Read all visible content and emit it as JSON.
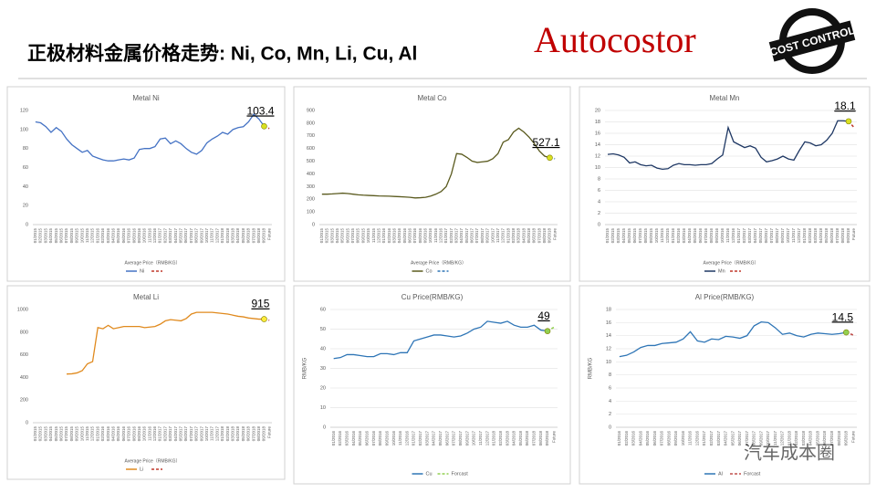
{
  "header": {
    "title": "正极材料金属价格走势: Ni, Co, Mn, Li, Cu, Al",
    "logo": "Autocostor",
    "badge": "COST CONTROL",
    "watermark": "汽车成本圈"
  },
  "chart_data": [
    {
      "type": "line",
      "title": "Metal Ni",
      "x_label": "Average Price（RMB/KG）",
      "ylim": [
        0,
        120
      ],
      "yticks": [
        0,
        20,
        40,
        60,
        80,
        100,
        120
      ],
      "grid": false,
      "marker_color": "#d9e021",
      "categories": [
        "01/2015",
        "02/2015",
        "03/2015",
        "04/2015",
        "05/2015",
        "06/2015",
        "07/2015",
        "08/2015",
        "09/2015",
        "10/2015",
        "11/2015",
        "12/2015",
        "01/2016",
        "02/2016",
        "03/2016",
        "04/2016",
        "05/2016",
        "06/2016",
        "07/2016",
        "08/2016",
        "09/2016",
        "10/2016",
        "11/2016",
        "12/2016",
        "01/2017",
        "02/2017",
        "03/2017",
        "04/2017",
        "05/2017",
        "06/2017",
        "07/2017",
        "08/2017",
        "09/2017",
        "10/2017",
        "11/2017",
        "12/2017",
        "01/2018",
        "02/2018",
        "03/2018",
        "04/2018",
        "05/2018",
        "06/2018",
        "07/2018",
        "08/2018",
        "09/2018",
        "Future"
      ],
      "series": [
        {
          "name": "Ni",
          "color": "#4472c4",
          "values": [
            108,
            107,
            103,
            97,
            102,
            98,
            90,
            84,
            80,
            76,
            78,
            72,
            70,
            68,
            67,
            67,
            68,
            69,
            68,
            70,
            79,
            80,
            80,
            82,
            90,
            91,
            85,
            88,
            85,
            80,
            76,
            74,
            78,
            86,
            90,
            93,
            97,
            95,
            100,
            102,
            103,
            108,
            116,
            111,
            103.4,
            null
          ]
        },
        {
          "color": "#c0392b",
          "dashed": true,
          "values": [
            null,
            null,
            null,
            null,
            null,
            null,
            null,
            null,
            null,
            null,
            null,
            null,
            null,
            null,
            null,
            null,
            null,
            null,
            null,
            null,
            null,
            null,
            null,
            null,
            null,
            null,
            null,
            null,
            null,
            null,
            null,
            null,
            null,
            null,
            null,
            null,
            null,
            null,
            null,
            null,
            null,
            null,
            null,
            null,
            103.4,
            101
          ]
        }
      ]
    },
    {
      "type": "line",
      "title": "Metal Co",
      "x_label": "Average Price（RMB/KG）",
      "ylim": [
        0,
        900
      ],
      "yticks": [
        0,
        100,
        200,
        300,
        400,
        500,
        600,
        700,
        800,
        900
      ],
      "grid": false,
      "marker_color": "#d9e021",
      "categories": [
        "01/2015",
        "02/2015",
        "03/2015",
        "04/2015",
        "05/2015",
        "06/2015",
        "07/2015",
        "08/2015",
        "09/2015",
        "10/2015",
        "11/2015",
        "12/2015",
        "01/2016",
        "02/2016",
        "03/2016",
        "04/2016",
        "05/2016",
        "06/2016",
        "07/2016",
        "08/2016",
        "09/2016",
        "10/2016",
        "11/2016",
        "12/2016",
        "01/2017",
        "02/2017",
        "03/2017",
        "04/2017",
        "05/2017",
        "06/2017",
        "07/2017",
        "08/2017",
        "09/2017",
        "10/2017",
        "11/2017",
        "12/2017",
        "01/2018",
        "02/2018",
        "03/2018",
        "04/2018",
        "05/2018",
        "06/2018",
        "07/2018",
        "08/2018",
        "09/2018",
        "Future"
      ],
      "series": [
        {
          "name": "Co",
          "color": "#5a5a1e",
          "values": [
            240,
            240,
            242,
            245,
            248,
            245,
            240,
            235,
            232,
            230,
            228,
            226,
            225,
            224,
            222,
            220,
            218,
            215,
            210,
            212,
            215,
            225,
            240,
            260,
            300,
            400,
            560,
            555,
            530,
            500,
            490,
            495,
            500,
            520,
            560,
            650,
            670,
            730,
            760,
            730,
            690,
            640,
            580,
            540,
            527.1,
            null
          ]
        },
        {
          "color": "#2e75b6",
          "dashed": true,
          "values": [
            null,
            null,
            null,
            null,
            null,
            null,
            null,
            null,
            null,
            null,
            null,
            null,
            null,
            null,
            null,
            null,
            null,
            null,
            null,
            null,
            null,
            null,
            null,
            null,
            null,
            null,
            null,
            null,
            null,
            null,
            null,
            null,
            null,
            null,
            null,
            null,
            null,
            null,
            null,
            null,
            null,
            null,
            null,
            null,
            527.1,
            520
          ]
        }
      ]
    },
    {
      "type": "line",
      "title": "Metal Mn",
      "x_label": "Average Price（RMB/KG）",
      "ylim": [
        0,
        20
      ],
      "yticks": [
        0,
        2,
        4,
        6,
        8,
        10,
        12,
        14,
        16,
        18,
        20
      ],
      "grid": true,
      "marker_color": "#d9e021",
      "categories": [
        "01/2015",
        "02/2015",
        "03/2015",
        "04/2015",
        "05/2015",
        "06/2015",
        "07/2015",
        "08/2015",
        "09/2015",
        "10/2015",
        "11/2015",
        "12/2015",
        "01/2016",
        "02/2016",
        "03/2016",
        "04/2016",
        "05/2016",
        "06/2016",
        "07/2016",
        "08/2016",
        "09/2016",
        "10/2016",
        "11/2016",
        "12/2016",
        "01/2017",
        "02/2017",
        "03/2017",
        "04/2017",
        "05/2017",
        "06/2017",
        "07/2017",
        "08/2017",
        "09/2017",
        "10/2017",
        "11/2017",
        "12/2017",
        "01/2018",
        "02/2018",
        "03/2018",
        "04/2018",
        "05/2018",
        "06/2018",
        "07/2018",
        "08/2018",
        "09/2018",
        "Future"
      ],
      "series": [
        {
          "name": "Mn",
          "color": "#1f3864",
          "values": [
            12.3,
            12.4,
            12.2,
            11.8,
            10.8,
            11.0,
            10.5,
            10.3,
            10.4,
            9.9,
            9.7,
            9.8,
            10.4,
            10.7,
            10.5,
            10.5,
            10.4,
            10.5,
            10.5,
            10.7,
            11.5,
            12.2,
            17.0,
            14.5,
            14.0,
            13.5,
            13.8,
            13.4,
            11.8,
            11.0,
            11.2,
            11.5,
            12.0,
            11.5,
            11.3,
            13.0,
            14.5,
            14.3,
            13.8,
            14.0,
            14.8,
            16.0,
            18.2,
            18.2,
            18.1,
            null
          ]
        },
        {
          "color": "#c0392b",
          "dashed": true,
          "values": [
            null,
            null,
            null,
            null,
            null,
            null,
            null,
            null,
            null,
            null,
            null,
            null,
            null,
            null,
            null,
            null,
            null,
            null,
            null,
            null,
            null,
            null,
            null,
            null,
            null,
            null,
            null,
            null,
            null,
            null,
            null,
            null,
            null,
            null,
            null,
            null,
            null,
            null,
            null,
            null,
            null,
            null,
            null,
            null,
            18.1,
            17.0
          ]
        }
      ]
    },
    {
      "type": "line",
      "title": "Metal Li",
      "x_label": "Average Price（RMB/KG）",
      "ylim": [
        0,
        1000
      ],
      "yticks": [
        0,
        200,
        400,
        600,
        800,
        1000
      ],
      "grid": false,
      "marker_color": "#ffeb3b",
      "categories": [
        "01/2015",
        "02/2015",
        "03/2015",
        "04/2015",
        "05/2015",
        "06/2015",
        "07/2015",
        "08/2015",
        "09/2015",
        "10/2015",
        "11/2015",
        "12/2015",
        "01/2016",
        "02/2016",
        "03/2016",
        "04/2016",
        "05/2016",
        "06/2016",
        "07/2016",
        "08/2016",
        "09/2016",
        "10/2016",
        "11/2016",
        "12/2016",
        "01/2017",
        "02/2017",
        "03/2017",
        "04/2017",
        "05/2017",
        "06/2017",
        "07/2017",
        "08/2017",
        "09/2017",
        "10/2017",
        "11/2017",
        "12/2017",
        "01/2018",
        "02/2018",
        "03/2018",
        "04/2018",
        "05/2018",
        "06/2018",
        "07/2018",
        "08/2018",
        "09/2018",
        "Future"
      ],
      "series": [
        {
          "name": "Li",
          "color": "#e08a1e",
          "values": [
            null,
            null,
            null,
            null,
            null,
            null,
            430,
            432,
            440,
            460,
            520,
            540,
            840,
            830,
            860,
            830,
            840,
            850,
            850,
            850,
            850,
            840,
            845,
            850,
            870,
            900,
            910,
            905,
            900,
            920,
            960,
            975,
            975,
            975,
            975,
            970,
            965,
            960,
            950,
            940,
            935,
            925,
            920,
            915,
            915,
            null
          ]
        },
        {
          "color": "#c0392b",
          "dashed": true,
          "values": [
            null,
            null,
            null,
            null,
            null,
            null,
            null,
            null,
            null,
            null,
            null,
            null,
            null,
            null,
            null,
            null,
            null,
            null,
            null,
            null,
            null,
            null,
            null,
            null,
            null,
            null,
            null,
            null,
            null,
            null,
            null,
            null,
            null,
            null,
            null,
            null,
            null,
            null,
            null,
            null,
            null,
            null,
            null,
            null,
            915,
            905
          ]
        }
      ]
    },
    {
      "type": "line",
      "title": "Cu Price(RMB/KG)",
      "y_label": "RMB/KG",
      "ylim": [
        0,
        60
      ],
      "yticks": [
        0,
        10,
        20,
        30,
        40,
        50,
        60
      ],
      "grid": true,
      "marker_color": "#92d050",
      "categories": [
        "01/2016",
        "02/2016",
        "03/2016",
        "04/2016",
        "05/2016",
        "06/2016",
        "07/2016",
        "08/2016",
        "09/2016",
        "10/2016",
        "11/2016",
        "12/2016",
        "01/2017",
        "02/2017",
        "03/2017",
        "04/2017",
        "05/2017",
        "06/2017",
        "07/2017",
        "08/2017",
        "09/2017",
        "10/2017",
        "11/2017",
        "12/2017",
        "01/2018",
        "02/2018",
        "03/2018",
        "04/2018",
        "05/2018",
        "06/2018",
        "07/2018",
        "08/2018",
        "09/2018",
        "Future"
      ],
      "series": [
        {
          "name": "Cu",
          "color": "#2e75b6",
          "values": [
            35,
            35.5,
            37,
            37,
            36.5,
            36,
            36,
            37.5,
            37.5,
            37,
            38,
            38,
            44,
            45,
            46,
            47,
            47,
            46.5,
            46,
            46.5,
            48,
            50,
            51,
            54,
            53.5,
            53,
            54,
            52,
            51,
            51,
            52,
            49.5,
            49,
            null
          ]
        },
        {
          "name": "Forcast",
          "color": "#92d050",
          "dashed": true,
          "values": [
            null,
            null,
            null,
            null,
            null,
            null,
            null,
            null,
            null,
            null,
            null,
            null,
            null,
            null,
            null,
            null,
            null,
            null,
            null,
            null,
            null,
            null,
            null,
            null,
            null,
            null,
            null,
            null,
            null,
            null,
            null,
            null,
            49,
            51
          ]
        }
      ]
    },
    {
      "type": "line",
      "title": "Al Price(RMB/KG)",
      "y_label": "RMB/KG",
      "ylim": [
        0,
        18
      ],
      "yticks": [
        0,
        2,
        4,
        6,
        8,
        10,
        12,
        14,
        16,
        18
      ],
      "grid": true,
      "marker_color": "#92d050",
      "categories": [
        "01/2016",
        "02/2016",
        "03/2016",
        "04/2016",
        "05/2016",
        "06/2016",
        "07/2016",
        "08/2016",
        "09/2016",
        "10/2016",
        "11/2016",
        "12/2016",
        "01/2017",
        "02/2017",
        "03/2017",
        "04/2017",
        "05/2017",
        "06/2017",
        "07/2017",
        "08/2017",
        "09/2017",
        "10/2017",
        "11/2017",
        "12/2017",
        "01/2018",
        "02/2018",
        "03/2018",
        "04/2018",
        "05/2018",
        "06/2018",
        "07/2018",
        "08/2018",
        "09/2018",
        "Future"
      ],
      "series": [
        {
          "name": "Al",
          "color": "#2e75b6",
          "values": [
            10.8,
            11,
            11.5,
            12.2,
            12.5,
            12.5,
            12.8,
            12.9,
            13,
            13.5,
            14.6,
            13.2,
            13,
            13.5,
            13.4,
            13.9,
            13.8,
            13.6,
            14,
            15.5,
            16.1,
            16,
            15.2,
            14.2,
            14.4,
            14,
            13.8,
            14.2,
            14.4,
            14.3,
            14.2,
            14.3,
            14.5,
            null
          ]
        },
        {
          "name": "Forcast",
          "color": "#c0504d",
          "dashed": true,
          "values": [
            null,
            null,
            null,
            null,
            null,
            null,
            null,
            null,
            null,
            null,
            null,
            null,
            null,
            null,
            null,
            null,
            null,
            null,
            null,
            null,
            null,
            null,
            null,
            null,
            null,
            null,
            null,
            null,
            null,
            null,
            null,
            null,
            14.5,
            14.1
          ]
        }
      ]
    }
  ]
}
